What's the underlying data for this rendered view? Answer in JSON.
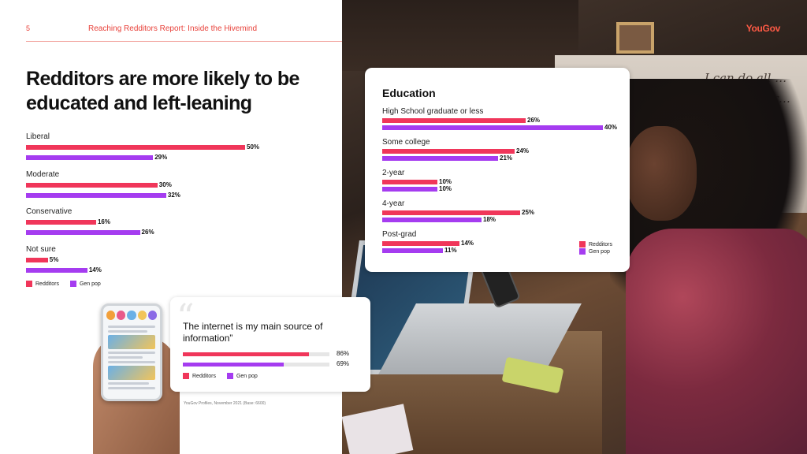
{
  "header": {
    "page_number": "5",
    "report_title": "Reaching Redditors Report: Inside the Hivemind",
    "brand": "YouGov"
  },
  "headline": "Redditors are more likely to be educated and left-leaning",
  "colors": {
    "redditors": "#f0365a",
    "gen_pop": "#a53cf0",
    "accent": "#e8413a"
  },
  "chart_data": [
    {
      "type": "bar",
      "orientation": "horizontal",
      "title": "",
      "categories": [
        "Liberal",
        "Moderate",
        "Conservative",
        "Not sure"
      ],
      "series": [
        {
          "name": "Redditors",
          "values": [
            50,
            30,
            16,
            5
          ]
        },
        {
          "name": "Gen pop",
          "values": [
            29,
            32,
            26,
            14
          ]
        }
      ],
      "value_labels": [
        [
          "50%",
          "29%"
        ],
        [
          "30%",
          "32%"
        ],
        [
          "16%",
          "26%"
        ],
        [
          "5%",
          "14%"
        ]
      ],
      "xlim": [
        0,
        100
      ],
      "grid": false,
      "legend": "bottom-left"
    },
    {
      "type": "bar",
      "orientation": "horizontal",
      "title": "Education",
      "categories": [
        "High School graduate or less",
        "Some college",
        "2-year",
        "4-year",
        "Post-grad"
      ],
      "series": [
        {
          "name": "Redditors",
          "values": [
            26,
            24,
            10,
            25,
            14
          ]
        },
        {
          "name": "Gen pop",
          "values": [
            40,
            21,
            10,
            18,
            11
          ]
        }
      ],
      "value_labels": [
        [
          "26%",
          "40%"
        ],
        [
          "24%",
          "21%"
        ],
        [
          "10%",
          "10%"
        ],
        [
          "25%",
          "18%"
        ],
        [
          "14%",
          "11%"
        ]
      ],
      "xlim": [
        0,
        40
      ],
      "grid": false,
      "legend": "bottom-right"
    },
    {
      "type": "bar",
      "orientation": "horizontal",
      "title": "The internet is my main source of information”",
      "categories": [
        "The internet is my main source of information"
      ],
      "series": [
        {
          "name": "Redditors",
          "values": [
            86
          ]
        },
        {
          "name": "Gen pop",
          "values": [
            69
          ]
        }
      ],
      "value_labels": [
        [
          "86%",
          "69%"
        ]
      ],
      "xlim": [
        0,
        100
      ],
      "grid": false,
      "legend": "bottom-left"
    }
  ],
  "legend_labels": {
    "redditors": "Redditors",
    "gen_pop": "Gen pop"
  },
  "photo": {
    "wall_text": "I can do all … through Chr… strengt…"
  },
  "source": "YouGov Profiles, November 2021 (Base: 6600)"
}
